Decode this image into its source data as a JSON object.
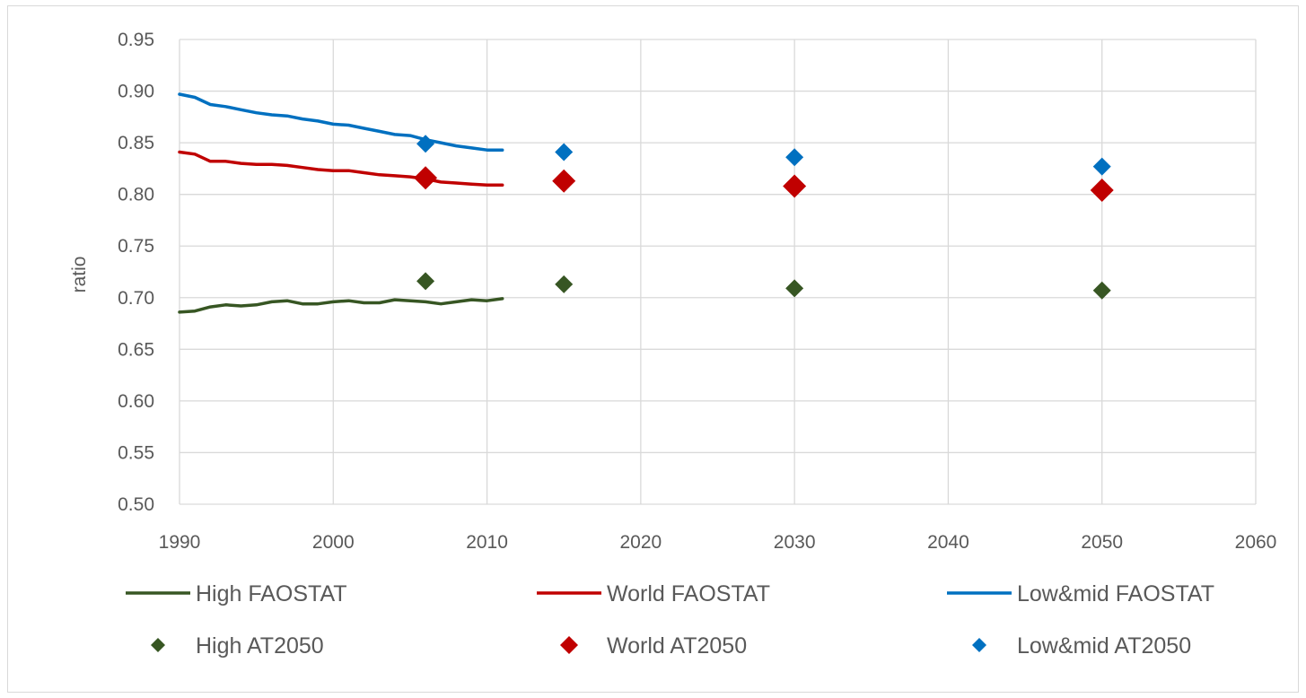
{
  "chart_data": {
    "type": "line",
    "title": "",
    "xlabel": "",
    "ylabel": "ratio",
    "xlim": [
      1990,
      2060
    ],
    "ylim": [
      0.5,
      0.95
    ],
    "x_ticks": [
      1990,
      2000,
      2010,
      2020,
      2030,
      2040,
      2050,
      2060
    ],
    "y_ticks": [
      "0.50",
      "0.55",
      "0.60",
      "0.65",
      "0.70",
      "0.75",
      "0.80",
      "0.85",
      "0.90",
      "0.95"
    ],
    "grid": true,
    "legend_position": "bottom",
    "series": [
      {
        "name": "High FAOSTAT",
        "kind": "line",
        "color": "#375623",
        "x": [
          1990,
          1991,
          1992,
          1993,
          1994,
          1995,
          1996,
          1997,
          1998,
          1999,
          2000,
          2001,
          2002,
          2003,
          2004,
          2005,
          2006,
          2007,
          2008,
          2009,
          2010,
          2011
        ],
        "y": [
          0.686,
          0.687,
          0.691,
          0.693,
          0.692,
          0.693,
          0.696,
          0.697,
          0.694,
          0.694,
          0.696,
          0.697,
          0.695,
          0.695,
          0.698,
          0.697,
          0.696,
          0.694,
          0.696,
          0.698,
          0.697,
          0.699
        ]
      },
      {
        "name": "World FAOSTAT",
        "kind": "line",
        "color": "#c00000",
        "x": [
          1990,
          1991,
          1992,
          1993,
          1994,
          1995,
          1996,
          1997,
          1998,
          1999,
          2000,
          2001,
          2002,
          2003,
          2004,
          2005,
          2006,
          2007,
          2008,
          2009,
          2010,
          2011
        ],
        "y": [
          0.841,
          0.839,
          0.832,
          0.832,
          0.83,
          0.829,
          0.829,
          0.828,
          0.826,
          0.824,
          0.823,
          0.823,
          0.821,
          0.819,
          0.818,
          0.817,
          0.815,
          0.812,
          0.811,
          0.81,
          0.809,
          0.809
        ]
      },
      {
        "name": "Low&mid FAOSTAT",
        "kind": "line",
        "color": "#0070c0",
        "x": [
          1990,
          1991,
          1992,
          1993,
          1994,
          1995,
          1996,
          1997,
          1998,
          1999,
          2000,
          2001,
          2002,
          2003,
          2004,
          2005,
          2006,
          2007,
          2008,
          2009,
          2010,
          2011
        ],
        "y": [
          0.897,
          0.894,
          0.887,
          0.885,
          0.882,
          0.879,
          0.877,
          0.876,
          0.873,
          0.871,
          0.868,
          0.867,
          0.864,
          0.861,
          0.858,
          0.857,
          0.853,
          0.85,
          0.847,
          0.845,
          0.843,
          0.843
        ]
      },
      {
        "name": "High AT2050",
        "kind": "marker",
        "color": "#375623",
        "x": [
          2006,
          2015,
          2030,
          2050
        ],
        "y": [
          0.716,
          0.713,
          0.709,
          0.707
        ]
      },
      {
        "name": "World AT2050",
        "kind": "marker",
        "color": "#c00000",
        "x": [
          2006,
          2015,
          2030,
          2050
        ],
        "y": [
          0.816,
          0.813,
          0.808,
          0.804
        ]
      },
      {
        "name": "Low&mid AT2050",
        "kind": "marker",
        "color": "#0070c0",
        "x": [
          2006,
          2015,
          2030,
          2050
        ],
        "y": [
          0.849,
          0.841,
          0.836,
          0.827
        ]
      }
    ]
  }
}
